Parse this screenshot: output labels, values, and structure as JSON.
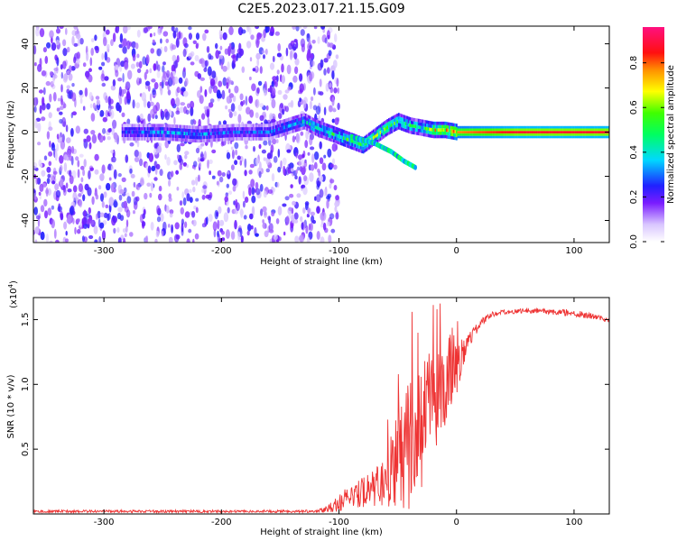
{
  "title": "C2E5.2023.017.21.15.G09",
  "chart_data": [
    {
      "type": "heatmap",
      "xlabel": "Height of straight line (km)",
      "ylabel": "Frequency (Hz)",
      "xlim": [
        -360,
        130
      ],
      "ylim": [
        -50,
        48
      ],
      "xticks": [
        -300,
        -200,
        -100,
        0,
        100
      ],
      "yticks": [
        -40,
        -20,
        0,
        20,
        40
      ],
      "colorbar": {
        "label": "Normalized spectral amplitude",
        "range": [
          0,
          0.96
        ],
        "ticks": [
          0.0,
          0.2,
          0.4,
          0.6,
          0.8
        ]
      },
      "noise_region": {
        "x_from": -360,
        "x_to": -110,
        "level": 0.1
      },
      "signal_ridge": {
        "x": [
          -280,
          -250,
          -220,
          -190,
          -160,
          -130,
          -120,
          -110,
          -100,
          -90,
          -80,
          -70,
          -60,
          -50,
          -40,
          -30,
          -20,
          -10,
          0,
          50,
          100,
          130
        ],
        "freq": [
          0,
          0,
          -1,
          0,
          0,
          5,
          2,
          0,
          -2,
          -4,
          -6,
          -2,
          2,
          5,
          3,
          2,
          1,
          1,
          0,
          0,
          0,
          0
        ],
        "amplitude": [
          0.3,
          0.35,
          0.35,
          0.3,
          0.3,
          0.4,
          0.45,
          0.5,
          0.55,
          0.55,
          0.6,
          0.6,
          0.55,
          0.55,
          0.5,
          0.45,
          0.7,
          0.75,
          0.8,
          0.9,
          0.9,
          0.9
        ]
      },
      "secondary_ridge": {
        "x": [
          -90,
          -70,
          -55,
          -45,
          -35
        ],
        "freq": [
          -2,
          -5,
          -9,
          -13,
          -16
        ]
      }
    },
    {
      "type": "line",
      "xlabel": "Height of straight line (km)",
      "ylabel": "SNR (10 * v/v)",
      "multiplier_label": "(x10",
      "multiplier_exp": "4",
      "xlim": [
        -360,
        130
      ],
      "ylim": [
        0,
        1.67
      ],
      "xticks": [
        -300,
        -200,
        -100,
        0,
        100
      ],
      "yticks": [
        0.5,
        1.0,
        1.5
      ],
      "ytick_labels": [
        "0.5",
        "1.0",
        "1.5"
      ],
      "series": [
        {
          "color": "#ee3333",
          "x": [
            -360,
            -300,
            -250,
            -200,
            -150,
            -120,
            -110,
            -100,
            -90,
            -80,
            -70,
            -60,
            -50,
            -40,
            -30,
            -20,
            -10,
            0,
            10,
            20,
            30,
            40,
            60,
            80,
            100,
            120,
            130
          ],
          "y": [
            0.02,
            0.02,
            0.02,
            0.02,
            0.02,
            0.02,
            0.04,
            0.09,
            0.13,
            0.17,
            0.2,
            0.28,
            0.42,
            0.52,
            0.72,
            0.85,
            0.95,
            1.12,
            1.33,
            1.47,
            1.54,
            1.56,
            1.57,
            1.56,
            1.55,
            1.52,
            1.49
          ],
          "noise": [
            0.01,
            0.01,
            0.01,
            0.01,
            0.01,
            0.01,
            0.03,
            0.07,
            0.09,
            0.12,
            0.14,
            0.22,
            0.4,
            0.5,
            0.55,
            0.38,
            0.3,
            0.2,
            0.06,
            0.03,
            0.02,
            0.02,
            0.02,
            0.02,
            0.03,
            0.02,
            0.02
          ]
        }
      ]
    }
  ]
}
